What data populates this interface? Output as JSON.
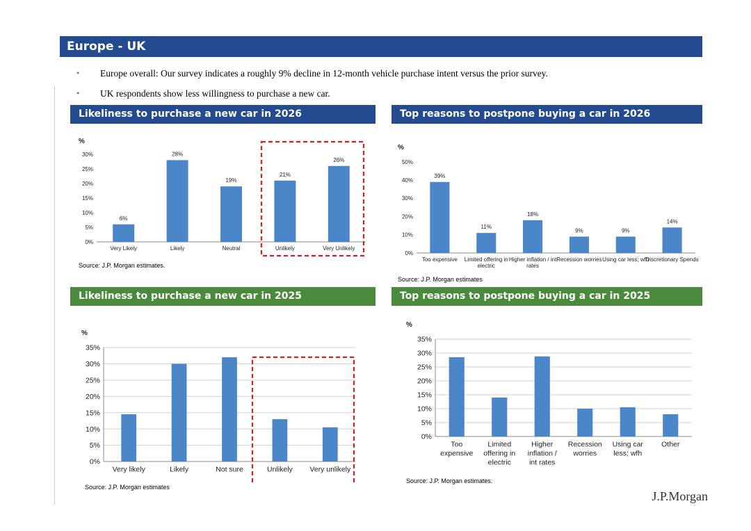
{
  "page": {
    "title": "Europe - UK",
    "bullets": [
      "Europe overall: Our survey indicates a roughly 9% decline in 12-month vehicle purchase intent versus the prior survey.",
      "UK respondents show less willingness to purchase a new car."
    ],
    "bullet_marker": "•",
    "logo": "J.P.Morgan",
    "colors": {
      "title_blue": "#244b8f",
      "title_green": "#4a8a3c",
      "bar": "#4a86c8",
      "highlight": "#d42020"
    }
  },
  "chart_data": [
    {
      "id": "c1",
      "type": "bar",
      "title": "Likeliness to purchase a new car in 2026",
      "ylabel": "%",
      "ylim": [
        0,
        30
      ],
      "yticks": [
        0,
        5,
        10,
        15,
        20,
        25,
        30
      ],
      "tick_suffix": "%",
      "categories": [
        "Very Likely",
        "Likely",
        "Neutral",
        "Unlikely",
        "Very Unlikely"
      ],
      "values": [
        6,
        28,
        19,
        21,
        26
      ],
      "data_labels": [
        "6%",
        "28%",
        "19%",
        "21%",
        "26%"
      ],
      "grid": false,
      "highlight": [
        "Unlikely",
        "Very Unlikely"
      ],
      "source": "Source: J.P. Morgan estimates."
    },
    {
      "id": "c2",
      "type": "bar",
      "title": "Top reasons to postpone buying a car in 2026",
      "ylabel": "%",
      "ylim": [
        0,
        50
      ],
      "yticks": [
        0,
        10,
        20,
        30,
        40,
        50
      ],
      "tick_suffix": "%",
      "categories": [
        "Too expensive",
        "Limited offering in electric",
        "Higher inflation / int rates",
        "Recession worries",
        "Using car less; wfh",
        "Discretionary Spends"
      ],
      "values": [
        39,
        11,
        18,
        9,
        9,
        14
      ],
      "data_labels": [
        "39%",
        "11%",
        "18%",
        "9%",
        "9%",
        "14%"
      ],
      "grid": false,
      "source": "Source: J.P. Morgan estimates"
    },
    {
      "id": "c3",
      "type": "bar",
      "title": "Likeliness to purchase a new car in 2025",
      "ylabel": "%",
      "ylim": [
        0,
        35
      ],
      "yticks": [
        0,
        5,
        10,
        15,
        20,
        25,
        30,
        35
      ],
      "tick_suffix": "%",
      "categories": [
        "Very likely",
        "Likely",
        "Not sure",
        "Unlikely",
        "Very unlikely"
      ],
      "values": [
        14.5,
        30,
        32,
        13,
        10.5
      ],
      "grid": true,
      "highlight": [
        "Unlikely",
        "Very unlikely"
      ],
      "source": "Source: J.P. Morgan estimates"
    },
    {
      "id": "c4",
      "type": "bar",
      "title": "Top reasons to postpone buying a car in 2025",
      "ylabel": "%",
      "ylim": [
        0,
        35
      ],
      "yticks": [
        0,
        5,
        10,
        15,
        20,
        25,
        30,
        35
      ],
      "tick_suffix": "%",
      "categories": [
        "Too expensive",
        "Limited offering in electric",
        "Higher inflation / int rates",
        "Recession worries",
        "Using car less; wfh",
        "Other"
      ],
      "values": [
        28.5,
        14,
        28.8,
        10,
        10.5,
        8
      ],
      "grid": true,
      "source": "Source: J.P. Morgan estimates."
    }
  ]
}
